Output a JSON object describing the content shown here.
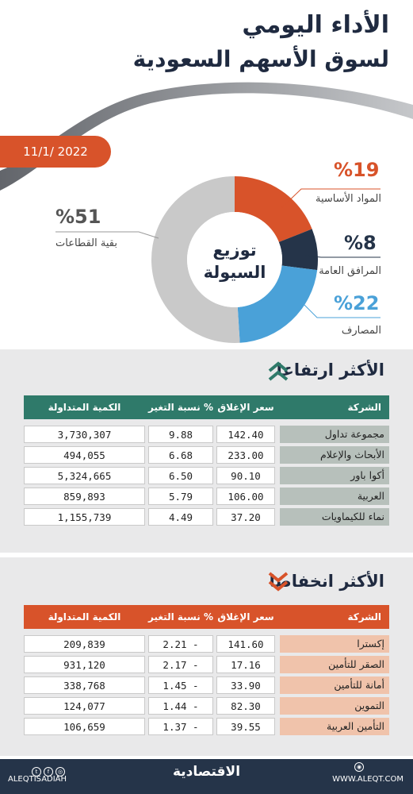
{
  "header": {
    "title_line1": "الأداء اليومي",
    "title_line2": "لسوق الأسهم السعودية",
    "date": "11/1/ 2022"
  },
  "chart_data": {
    "type": "pie",
    "center_label_line1": "توزيع",
    "center_label_line2": "السيولة",
    "slices": [
      {
        "name": "المواد الأساسية",
        "value": 19,
        "pct_label": "%19",
        "color": "#d8532a"
      },
      {
        "name": "المرافق العامة",
        "value": 8,
        "pct_label": "%8",
        "color": "#253449"
      },
      {
        "name": "المصارف",
        "value": 22,
        "pct_label": "%22",
        "color": "#4aa1d8"
      },
      {
        "name": "بقية القطاعات",
        "value": 51,
        "pct_label": "%51",
        "color": "#c9c9c9"
      }
    ]
  },
  "gainers": {
    "title": "الأكثر ارتفاعا",
    "header_color": "#2f7a6a",
    "headers": {
      "name": "الشركة",
      "close": "سعر الإغلاق",
      "change": "نسبة التغير %",
      "qty": "الكمية المتداولة"
    },
    "rows": [
      {
        "name": "مجموعة تداول",
        "close": "142.40",
        "change": "9.88",
        "qty": "3,730,307"
      },
      {
        "name": "الأبحاث والإعلام",
        "close": "233.00",
        "change": "6.68",
        "qty": "494,055"
      },
      {
        "name": "أكوا باور",
        "close": "90.10",
        "change": "6.50",
        "qty": "5,324,665"
      },
      {
        "name": "العربية",
        "close": "106.00",
        "change": "5.79",
        "qty": "859,893"
      },
      {
        "name": "نماء للكيماويات",
        "close": "37.20",
        "change": "4.49",
        "qty": "1,155,739"
      }
    ]
  },
  "losers": {
    "title": "الأكثر انخفاضا",
    "header_color": "#d8532a",
    "headers": {
      "name": "الشركة",
      "close": "سعر الإغلاق",
      "change": "نسبة التغير %",
      "qty": "الكمية المتداولة"
    },
    "rows": [
      {
        "name": "إكسترا",
        "close": "141.60",
        "change": "2.21 -",
        "qty": "209,839"
      },
      {
        "name": "الصقر للتأمين",
        "close": "17.16",
        "change": "2.17 -",
        "qty": "931,120"
      },
      {
        "name": "أمانة للتأمين",
        "close": "33.90",
        "change": "1.45 -",
        "qty": "338,768"
      },
      {
        "name": "التموين",
        "close": "82.30",
        "change": "1.44 -",
        "qty": "124,077"
      },
      {
        "name": "التأمين العربية",
        "close": "39.55",
        "change": "1.37 -",
        "qty": "106,659"
      }
    ]
  },
  "footer": {
    "brand": "الاقتصادية",
    "website": "WWW.ALEQT.COM",
    "handle": "ALEQTISADIAH"
  }
}
